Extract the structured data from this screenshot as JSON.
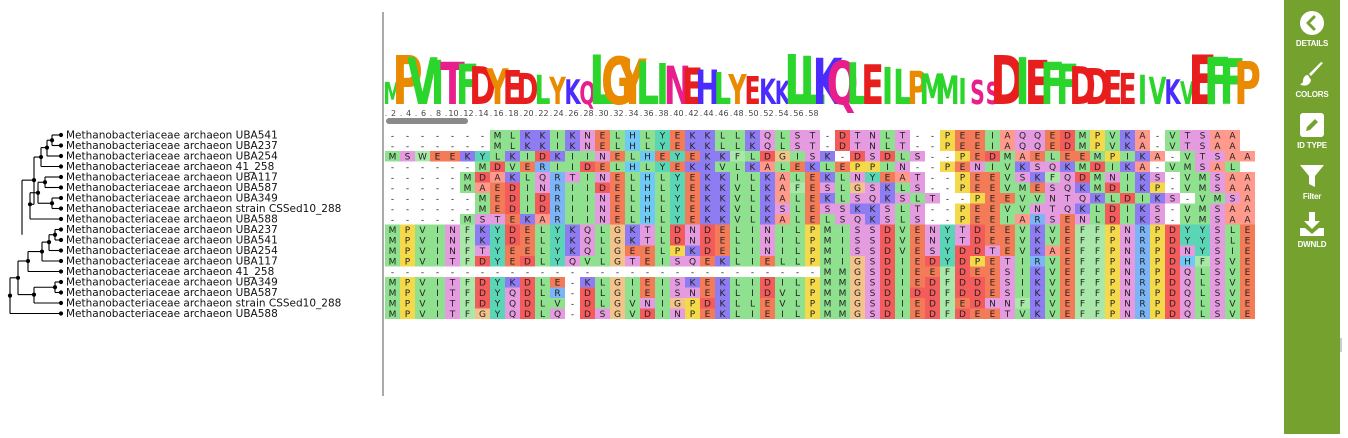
{
  "colors": {
    "A": "#ff9a8d",
    "V": "#8fe08f",
    "I": "#8fe08f",
    "L": "#8fe08f",
    "M": "#8fe08f",
    "F": "#a9e8a9",
    "W": "#a9e8a9",
    "Y": "#5ad6b7",
    "C": "#d8f06a",
    "G": "#f2c38a",
    "P": "#f4d94a",
    "S": "#e59bdf",
    "T": "#e59bdf",
    "N": "#e59bdf",
    "Q": "#e59bdf",
    "D": "#f45c5c",
    "E": "#f37b57",
    "K": "#8e7cf2",
    "R": "#7bb5f7",
    "H": "#6fc9f5",
    "-": "#ffffff"
  },
  "logo_colors": {
    "A": "#f0c000",
    "V": "#2bd52b",
    "I": "#2bd52b",
    "L": "#2bd52b",
    "M": "#2bd52b",
    "F": "#2bd52b",
    "W": "#2bd52b",
    "Y": "#e98a00",
    "C": "#e98a00",
    "G": "#e98a00",
    "P": "#e98a00",
    "S": "#e81e8c",
    "T": "#e81e8c",
    "N": "#e81e8c",
    "Q": "#e81e8c",
    "D": "#e81e1e",
    "E": "#e81e1e",
    "K": "#4b2cff",
    "R": "#4b2cff",
    "H": "#4b2cff"
  },
  "ruler_ticks": [
    "2",
    "4",
    "6",
    "8",
    "10",
    "12",
    "14",
    "16",
    "18",
    "20",
    "22",
    "24",
    "26",
    "28",
    "30",
    "32",
    "34",
    "36",
    "38",
    "40",
    "42",
    "44",
    "46",
    "48",
    "50",
    "52",
    "54",
    "56",
    "58"
  ],
  "logo_consensus": "MPVITFDYEDLYKQLGYLINEHLYEKKLLKQLEILPMMISSDIEFFDDEEIVKVEFFPNRPDQLSVE",
  "sequences": [
    {
      "name": "Methanobacteriaceae archaeon UBA541",
      "seq": "-------MLKKIKNELHLYEKKLLKQLST-DTNLT--PEEIAQQEDMPVKA-VTSAA"
    },
    {
      "name": "Methanobacteriaceae archaeon UBA237",
      "seq": "-------MLKKIKNELHLYEKKLLKQLST-DTNLT--PEEIAQQEDMPVKA-VTSAA"
    },
    {
      "name": "Methanobacteriaceae archaeon UBA254",
      "seq": "MSWEEKYLKIDKIINELHEYEKKFLDGISK-DSDLS--PEDMAELEEMPIKA-VTSAA"
    },
    {
      "name": "Methanobacteriaceae archaeon 41_258",
      "seq": "------MDVERIIDELHLYEKKVLKALEKLEPPIN--PENIVKSQKMDIKA-VMSAL"
    },
    {
      "name": "Methanobacteriaceae archaeon UBA117",
      "seq": "-----MDAKLQRTINELHLYEKKILKALEKLNYEAT--PEEVSKFQDMNIKS-VMSAA"
    },
    {
      "name": "Methanobacteriaceae archaeon UBA587",
      "seq": "-----MAEDINRIIDELHLYEKKVLKAFESLGSKLS--PEEVMESQKMDIKP-VMSAA"
    },
    {
      "name": "Methanobacteriaceae archaeon UBA349",
      "seq": "------MEDIDRIINELHLYEKKVLKALEKLSQKSLT--PEEVVNTQKLDIKS-VMSAA"
    },
    {
      "name": "Methanobacteriaceae archaeon strain CSSed10_288",
      "seq": "------MEDIDRIINELHLYEKKVLKSLESSKKSLT--PEEVVNTQKLDIKS-VMSAA"
    },
    {
      "name": "Methanobacteriaceae archaeon UBA588",
      "seq": "-----MSTEKARIINELHLYEKKVLKALELSQKSLS--PEEIARSENLDIKS-VMSAA"
    },
    {
      "name": "Methanobacteriaceae archaeon UBA237",
      "seq": "MPVINFKYDELYKQLGKTLDNDELINILPMISSDVENYTDEEVKVEFFPNRPDYYSLE"
    },
    {
      "name": "Methanobacteriaceae archaeon UBA541",
      "seq": "MPVINFKYDELYKQLGKTLDNDELINILPMISSDVENYTDEEVKVEFFPNRPDYYSLE"
    },
    {
      "name": "Methanobacteriaceae archaeon UBA254",
      "seq": "MPVINFTYEELYKQLGEELPKDELINILPMISSDVESYDDTEVKAEFFPNRPDNYSIE"
    },
    {
      "name": "Methanobacteriaceae archaeon UBA117",
      "seq": "MPVITFDYEDLYQVLGTEISQEKLIELLPMIGSDIEDYDPETIRVEFFPNRPDHFSVE"
    },
    {
      "name": "Methanobacteriaceae archaeon 41_258",
      "seq": "-----------------------------MMGSDIEEFDEESIKVEFFPNRPDQLSVE"
    },
    {
      "name": "Methanobacteriaceae archaeon UBA349",
      "seq": "MPVITFDYKDLE-KLGIEISKEKLIDILPMMGSDIEDFDDESIKVEFFPNRPDQLSVE"
    },
    {
      "name": "Methanobacteriaceae archaeon UBA587",
      "seq": "MPVITFDYQDLR-DLGIEISNEKLIDVLPMMGSDIDDFDDESIKVEFFPNRPDQLSVE"
    },
    {
      "name": "Methanobacteriaceae archaeon strain CSSed10_288",
      "seq": "MPVITFDYQDLV-DLGVNIGPDKLLEVLPMMGSDIEDFEDNNFKVEFFPNRPDQLSVE"
    },
    {
      "name": "Methanobacteriaceae archaeon UBA588",
      "seq": "MPVITFGYQDLQ-DSGVDINPEKLIEILPMMGSDIEDFDEETVKVEFFPNRPDQLSVE"
    }
  ],
  "sidebar": {
    "details_label": "DETAILS",
    "colors_label": "COLORS",
    "idtype_label": "ID TYPE",
    "filter_label": "Filter",
    "download_label": "DWNLD"
  }
}
